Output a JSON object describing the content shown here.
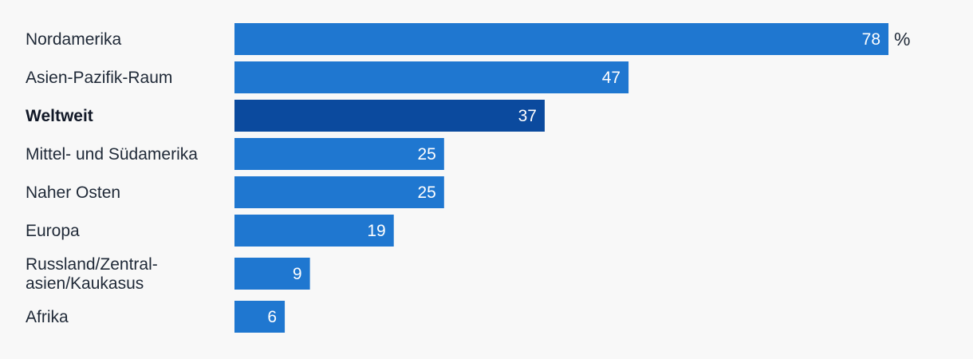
{
  "chart_data": {
    "type": "bar",
    "orientation": "horizontal",
    "categories": [
      "Nordamerika",
      "Asien-Pazifik-Raum",
      "Weltweit",
      "Mittel- und Südamerika",
      "Naher Osten",
      "Europa",
      "Russland/Zentral-\nasien/Kaukasus",
      "Afrika"
    ],
    "values": [
      78,
      47,
      37,
      25,
      25,
      19,
      9,
      6
    ],
    "value_labels": [
      "78",
      "47",
      "37",
      "25",
      "25",
      "19",
      "9",
      "6"
    ],
    "unit": "%",
    "highlight_category": "Weltweit",
    "xlim": [
      0,
      78
    ],
    "grid": false,
    "legend": "none",
    "colors": {
      "bar": "#1f77d0",
      "highlight": "#0b4a9e",
      "background": "#f8f8f8",
      "label": "#1f2937",
      "value_text": "#ffffff"
    }
  }
}
